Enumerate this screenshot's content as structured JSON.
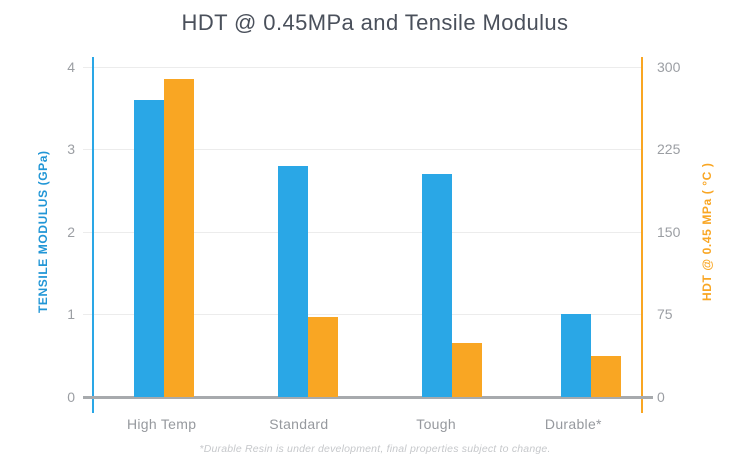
{
  "title": "HDT @ 0.45MPa and Tensile Modulus",
  "chart_data": {
    "type": "bar",
    "title": "HDT @ 0.45MPa and Tensile Modulus",
    "categories": [
      "High Temp",
      "Standard",
      "Tough",
      "Durable*"
    ],
    "series": [
      {
        "name": "Tensile Modulus",
        "axis": "left",
        "unit": "GPa",
        "color": "#2aa7e6",
        "values": [
          3.6,
          2.8,
          2.7,
          1.0
        ]
      },
      {
        "name": "HDT @ 0.45 MPa",
        "axis": "right",
        "unit": "°C",
        "color": "#f9a623",
        "values": [
          289,
          73,
          49,
          37
        ]
      }
    ],
    "left_axis": {
      "label": "TENSILE MODULUS (GPa)",
      "ticks": [
        "4",
        "3",
        "2",
        "1",
        "0"
      ],
      "range": [
        0,
        4
      ],
      "color": "#2aa7e6"
    },
    "right_axis": {
      "label": "HDT @ 0.45 MPa ( °C )",
      "ticks": [
        "300",
        "225",
        "150",
        "75",
        "0"
      ],
      "range": [
        0,
        300
      ],
      "color": "#f9a623"
    },
    "grid": true,
    "legend_position": "none",
    "footnote": "*Durable Resin is under development, final properties subject to change."
  }
}
